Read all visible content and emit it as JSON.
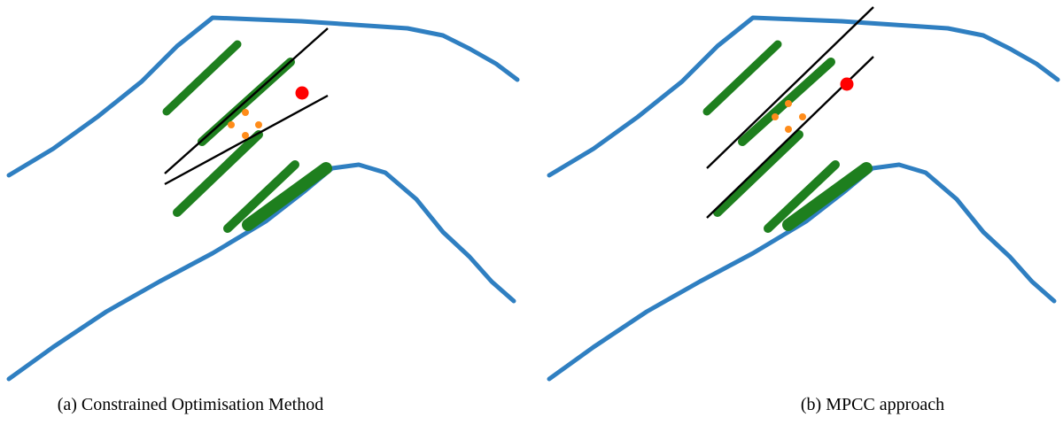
{
  "figure": {
    "panels": [
      {
        "caption": "(a) Constrained Optimisation Method"
      },
      {
        "caption": "(b) MPCC approach"
      }
    ]
  },
  "colors": {
    "track_boundary": "#2f7fc1",
    "obstacle": "#1e7f1e",
    "target": "#ff0000",
    "candidate": "#ff8c1a",
    "constraint_line": "#000000"
  }
}
